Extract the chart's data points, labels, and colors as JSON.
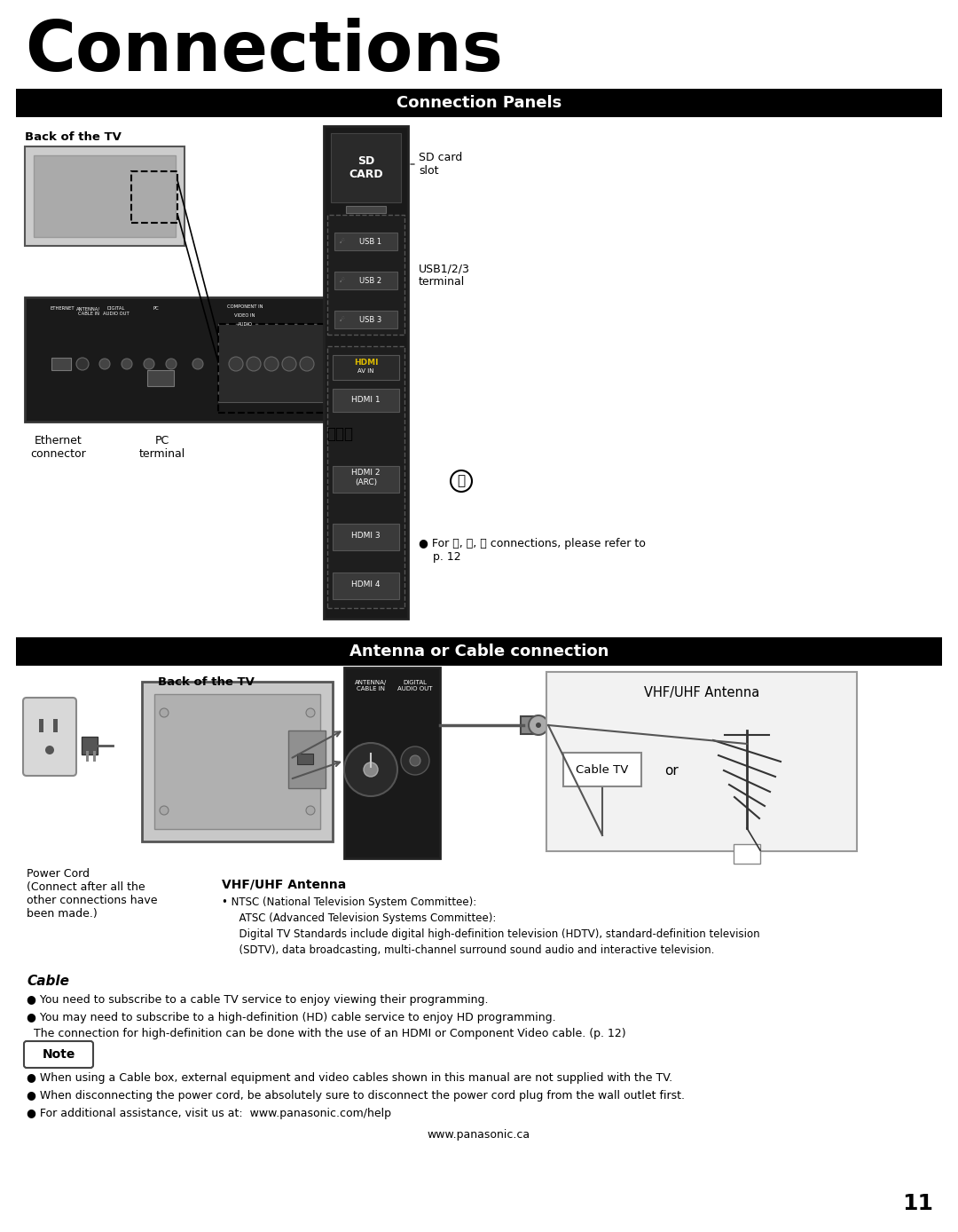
{
  "title": "Connections",
  "section1_header": "Connection Panels",
  "section2_header": "Antenna or Cable connection",
  "back_of_tv_label": "Back of the TV",
  "back_of_tv_label2": "Back of the TV",
  "sd_card_label": "SD\nCARD",
  "sd_card_slot_label": "SD card\nslot",
  "usb123_label": "USB1/2/3\nterminal",
  "usb1_label": "USB 1",
  "usb2_label": "USB 2",
  "usb3_label": "USB 3",
  "av_in_label": "AV IN",
  "hdmi1_label": "HDMI 1",
  "hdmi2_label": "HDMI 2\n(ARC)",
  "hdmi3_label": "HDMI 3",
  "hdmi4_label": "HDMI 4",
  "ethernet_label": "Ethernet\nconnector",
  "pc_label": "PC\nterminal",
  "abc_label": "ⒶⒷⒸ",
  "abc_ref_label": "● For Ⓐ, Ⓑ, Ⓒ connections, please refer to\n    p. 12",
  "power_cord_label": "Power Cord\n(Connect after all the\nother connections have\nbeen made.)",
  "vhfuhf_title": "VHF/UHF Antenna",
  "vhfuhf_line1": "• NTSC (National Television System Committee):",
  "vhfuhf_line2": "  ATSC (Advanced Television Systems Committee):",
  "vhfuhf_line3": "  Digital TV Standards include digital high-definition television (HDTV), standard-definition television",
  "vhfuhf_line4": "  (SDTV), data broadcasting, multi-channel surround sound audio and interactive television.",
  "cable_title": "Cable",
  "cable_bullet1": "● You need to subscribe to a cable TV service to enjoy viewing their programming.",
  "cable_bullet2": "● You may need to subscribe to a high-definition (HD) cable service to enjoy HD programming.",
  "cable_bullet2b": "  The connection for high-definition can be done with the use of an HDMI or Component Video cable. (p. 12)",
  "note_label": "Note",
  "note_bullet1": "● When using a Cable box, external equipment and video cables shown in this manual are not supplied with the TV.",
  "note_bullet2": "● When disconnecting the power cord, be absolutely sure to disconnect the power cord plug from the wall outlet first.",
  "note_bullet3": "● For additional assistance, visit us at:  www.panasonic.com/help",
  "website": "www.panasonic.ca",
  "page_num": "11",
  "bg_color": "#ffffff",
  "header_bg": "#000000",
  "header_fg": "#ffffff",
  "tv_dark": "#1a1a1a",
  "tv_gray": "#b8b8b8",
  "panel_color": "#222222"
}
